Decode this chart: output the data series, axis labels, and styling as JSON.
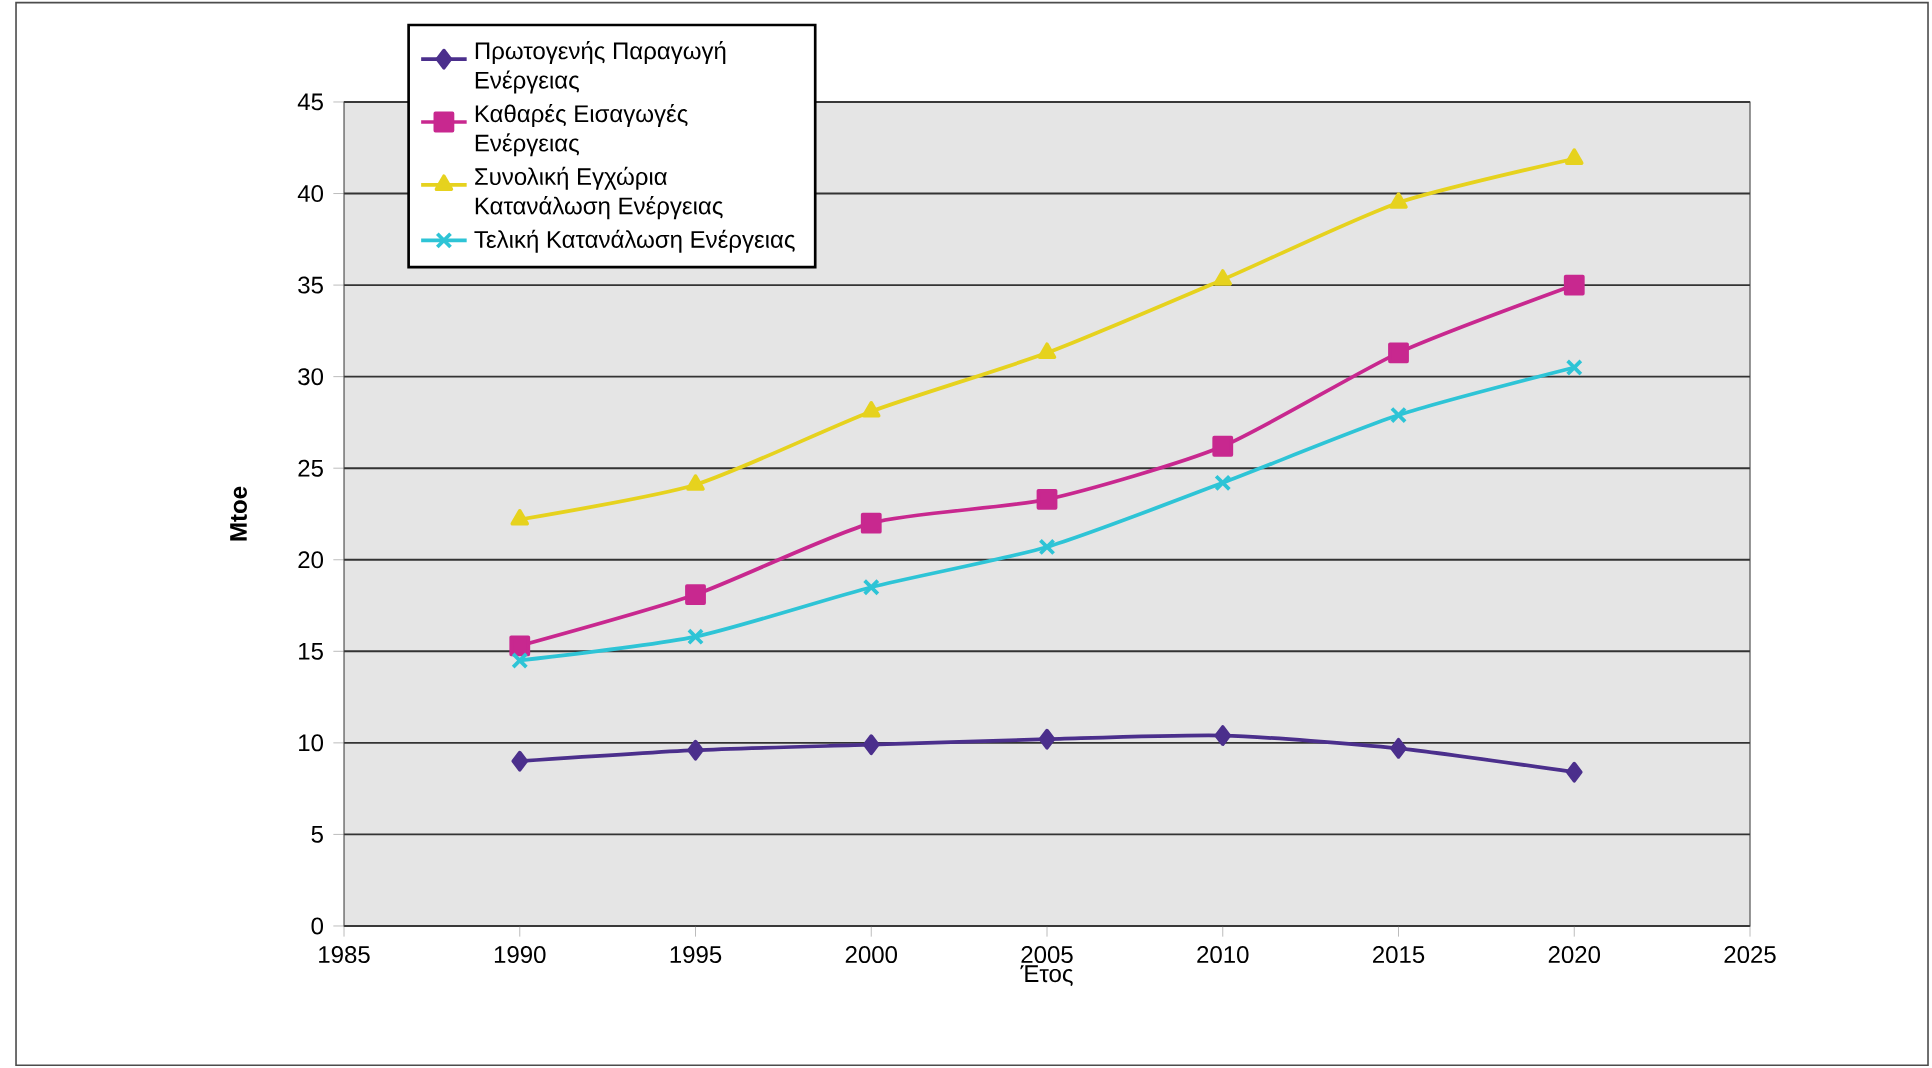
{
  "chart_data": {
    "type": "line",
    "xlabel": "Έτος",
    "ylabel": "Mtoe",
    "x": [
      1990,
      1995,
      2000,
      2005,
      2010,
      2015,
      2020
    ],
    "series": [
      {
        "name": "Πρωτογενής Παραγωγή Ενέργειας",
        "color": "#4b2f8c",
        "marker": "diamond",
        "values": [
          9.0,
          9.6,
          9.9,
          10.2,
          10.4,
          9.7,
          8.4
        ]
      },
      {
        "name": "Καθαρές Εισαγωγές Ενέργειας",
        "color": "#c8288f",
        "marker": "square",
        "values": [
          15.3,
          18.1,
          22.0,
          23.3,
          26.2,
          31.3,
          35.0
        ]
      },
      {
        "name": "Συνολική Εγχώρια Κατανάλωση Ενέργειας",
        "color": "#e6d21e",
        "marker": "triangle",
        "values": [
          22.2,
          24.1,
          28.1,
          31.3,
          35.3,
          39.5,
          41.9
        ]
      },
      {
        "name": "Τελική Κατανάλωση Ενέργειας",
        "color": "#2ec4d6",
        "marker": "cross",
        "values": [
          14.5,
          15.8,
          18.5,
          20.7,
          24.2,
          27.9,
          30.5
        ]
      }
    ],
    "xlim": [
      1985,
      2025
    ],
    "xticks": [
      1985,
      1990,
      1995,
      2000,
      2005,
      2010,
      2015,
      2020,
      2025
    ],
    "ylim": [
      0,
      45
    ],
    "yticks": [
      0,
      5,
      10,
      15,
      20,
      25,
      30,
      35,
      40,
      45
    ],
    "grid": "y",
    "legend": "top left",
    "line_style": "solid"
  }
}
